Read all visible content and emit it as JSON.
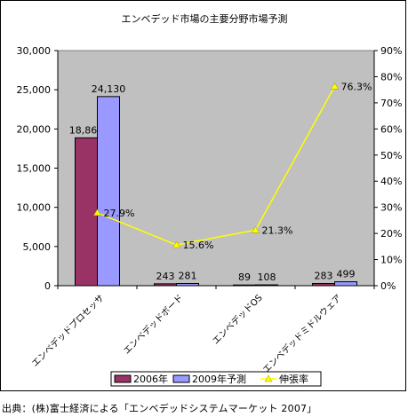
{
  "chart_data": {
    "type": "bar",
    "title": "エンベデッド市場の主要分野市場予測",
    "categories": [
      "エンベデッドプロセッサ",
      "エンベデッドボード",
      "エンベデッドOS",
      "エンベデッドミドルウェア"
    ],
    "series": [
      {
        "name": "2006年",
        "type": "bar",
        "axis": "left",
        "values": [
          18866,
          243,
          89,
          283
        ],
        "labels": [
          "18,866",
          "243",
          "89",
          "283"
        ],
        "color": "#993366"
      },
      {
        "name": "2009年予測",
        "type": "bar",
        "axis": "left",
        "values": [
          24130,
          281,
          108,
          499
        ],
        "labels": [
          "24,130",
          "281",
          "108",
          "499"
        ],
        "color": "#9999ff"
      },
      {
        "name": "伸張率",
        "type": "line",
        "axis": "right",
        "values": [
          27.9,
          15.6,
          21.3,
          76.3
        ],
        "labels": [
          "27.9%",
          "15.6%",
          "21.3%",
          "76.3%"
        ],
        "color": "#ffff00"
      }
    ],
    "ylim_left": [
      0,
      30000
    ],
    "ylim_right": [
      0,
      90
    ],
    "yticks_left": [
      "0",
      "5,000",
      "10,000",
      "15,000",
      "20,000",
      "25,000",
      "30,000"
    ],
    "yticks_right": [
      "0%",
      "10%",
      "20%",
      "30%",
      "40%",
      "50%",
      "60%",
      "70%",
      "80%",
      "90%"
    ],
    "grid": false,
    "plot_background": "#c0c0c0",
    "legend": "bottom"
  },
  "source_note": "出典：(株)富士経済による「エンベデッドシステムマーケット 2007」"
}
